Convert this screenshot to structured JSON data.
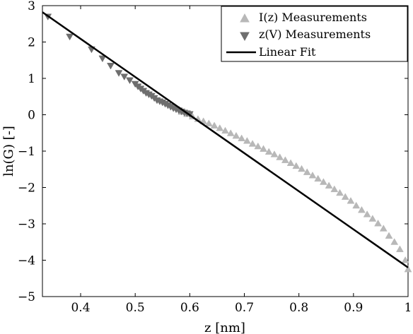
{
  "chart_data": {
    "type": "scatter",
    "xlabel": "z [nm]",
    "ylabel": "ln(G) [-]",
    "xlim": [
      0.33,
      1.0
    ],
    "ylim": [
      -5,
      3
    ],
    "xticks": [
      0.4,
      0.5,
      0.6,
      0.7,
      0.8,
      0.9,
      1
    ],
    "xtick_labels": [
      "0.4",
      "0.5",
      "0.6",
      "0.7",
      "0.8",
      "0.9",
      "1"
    ],
    "yticks": [
      3,
      2,
      1,
      0,
      -1,
      -2,
      -3,
      -4,
      -5
    ],
    "ytick_labels": [
      "3",
      "2",
      "1",
      "0",
      "−1",
      "−2",
      "−3",
      "−4",
      "−5"
    ],
    "grid": false,
    "legend_position": "top-right",
    "legend": [
      "I(z) Measurements",
      "z(V) Measurements",
      "Linear Fit"
    ],
    "series": [
      {
        "name": "I(z) Measurements",
        "marker": "triangle-up",
        "color": "#b8b8b8",
        "x": [
          0.585,
          0.595,
          0.605,
          0.615,
          0.625,
          0.635,
          0.645,
          0.655,
          0.665,
          0.675,
          0.685,
          0.695,
          0.705,
          0.715,
          0.725,
          0.735,
          0.745,
          0.755,
          0.765,
          0.775,
          0.785,
          0.795,
          0.805,
          0.815,
          0.825,
          0.835,
          0.845,
          0.855,
          0.865,
          0.875,
          0.885,
          0.895,
          0.905,
          0.915,
          0.925,
          0.935,
          0.945,
          0.955,
          0.965,
          0.975,
          0.985,
          0.995,
          1.0
        ],
        "y": [
          0.08,
          0.02,
          -0.05,
          -0.12,
          -0.18,
          -0.24,
          -0.3,
          -0.37,
          -0.44,
          -0.51,
          -0.58,
          -0.65,
          -0.72,
          -0.8,
          -0.87,
          -0.94,
          -1.02,
          -1.09,
          -1.17,
          -1.25,
          -1.33,
          -1.41,
          -1.49,
          -1.58,
          -1.67,
          -1.76,
          -1.85,
          -1.95,
          -2.05,
          -2.15,
          -2.26,
          -2.37,
          -2.5,
          -2.62,
          -2.74,
          -2.86,
          -2.99,
          -3.13,
          -3.33,
          -3.5,
          -3.7,
          -4.0,
          -4.25
        ]
      },
      {
        "name": "z(V) Measurements",
        "marker": "triangle-down",
        "color": "#6e6e6e",
        "x": [
          0.34,
          0.38,
          0.42,
          0.44,
          0.455,
          0.47,
          0.48,
          0.49,
          0.5,
          0.505,
          0.51,
          0.515,
          0.52,
          0.525,
          0.53,
          0.535,
          0.54,
          0.545,
          0.55,
          0.555,
          0.56,
          0.565,
          0.57,
          0.575,
          0.58,
          0.585,
          0.59,
          0.595,
          0.6
        ],
        "y": [
          2.7,
          2.15,
          1.8,
          1.55,
          1.35,
          1.15,
          1.05,
          0.95,
          0.85,
          0.78,
          0.72,
          0.66,
          0.6,
          0.56,
          0.52,
          0.46,
          0.4,
          0.37,
          0.34,
          0.3,
          0.26,
          0.22,
          0.18,
          0.15,
          0.12,
          0.09,
          0.06,
          0.04,
          0.02
        ]
      },
      {
        "name": "Linear Fit",
        "marker": "line",
        "color": "#000000",
        "x": [
          0.33,
          1.0
        ],
        "y": [
          2.82,
          -4.2
        ]
      }
    ]
  }
}
